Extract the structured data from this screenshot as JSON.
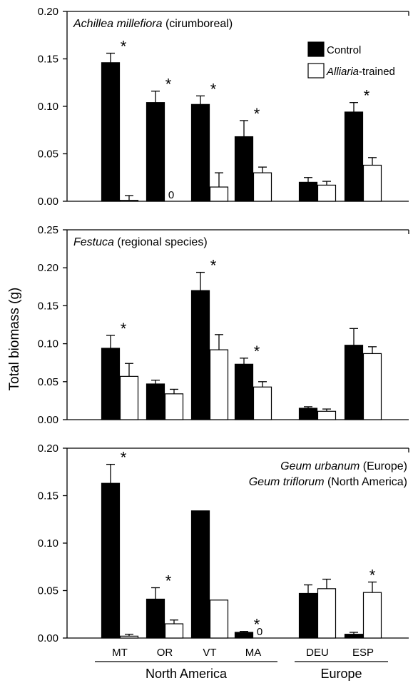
{
  "chart_data": {
    "type": "bar",
    "ylabel": "Total biomass (g)",
    "categories": [
      "MT",
      "OR",
      "VT",
      "MA",
      "DEU",
      "ESP"
    ],
    "groups": [
      {
        "name": "North America",
        "categories": [
          "MT",
          "OR",
          "VT",
          "MA"
        ]
      },
      {
        "name": "Europe",
        "categories": [
          "DEU",
          "ESP"
        ]
      }
    ],
    "legend": {
      "position": "top-right",
      "entries": [
        {
          "label": "Control",
          "fill": "#000000"
        },
        {
          "label_italic": "Alliaria",
          "label_rest": "-trained",
          "fill": "#ffffff"
        }
      ]
    },
    "panels": [
      {
        "title_italic": "Achillea millefiora",
        "title_rest": " (cirumboreal)",
        "ylim": [
          0,
          0.2
        ],
        "yticks": [
          "0.00",
          "0.05",
          "0.10",
          "0.15",
          "0.20"
        ],
        "series": [
          {
            "name": "Control",
            "values": [
              0.146,
              0.104,
              0.102,
              0.068,
              0.02,
              0.094
            ],
            "errors": [
              0.01,
              0.012,
              0.009,
              0.017,
              0.005,
              0.01
            ]
          },
          {
            "name": "Alliaria-trained",
            "values": [
              0.001,
              0.0,
              0.015,
              0.03,
              0.017,
              0.038
            ],
            "errors": [
              0.005,
              0.0,
              0.015,
              0.006,
              0.004,
              0.008
            ]
          }
        ],
        "significant": [
          "MT",
          "OR",
          "VT",
          "MA",
          "ESP"
        ],
        "zero_labels": [
          "OR"
        ]
      },
      {
        "title_italic": "Festuca",
        "title_rest": " (regional species)",
        "ylim": [
          0,
          0.25
        ],
        "yticks": [
          "0.00",
          "0.05",
          "0.10",
          "0.15",
          "0.20",
          "0.25"
        ],
        "series": [
          {
            "name": "Control",
            "values": [
              0.094,
              0.047,
              0.17,
              0.073,
              0.015,
              0.098
            ],
            "errors": [
              0.017,
              0.005,
              0.024,
              0.008,
              0.002,
              0.022
            ]
          },
          {
            "name": "Alliaria-trained",
            "values": [
              0.057,
              0.034,
              0.092,
              0.043,
              0.011,
              0.087
            ],
            "errors": [
              0.017,
              0.006,
              0.02,
              0.007,
              0.003,
              0.009
            ]
          }
        ],
        "significant": [
          "MT",
          "VT",
          "MA"
        ],
        "zero_labels": []
      },
      {
        "title_lines": [
          {
            "italic": "Geum urbanum",
            "rest": " (Europe)"
          },
          {
            "italic": "Geum triflorum",
            "rest": " (North America)"
          }
        ],
        "ylim": [
          0,
          0.2
        ],
        "yticks": [
          "0.00",
          "0.05",
          "0.10",
          "0.15",
          "0.20"
        ],
        "series": [
          {
            "name": "Control",
            "values": [
              0.163,
              0.041,
              0.134,
              0.006,
              0.047,
              0.004
            ],
            "errors": [
              0.02,
              0.012,
              0.0,
              0.001,
              0.009,
              0.002
            ]
          },
          {
            "name": "Alliaria-trained",
            "values": [
              0.002,
              0.015,
              0.04,
              0.0,
              0.052,
              0.048
            ],
            "errors": [
              0.002,
              0.004,
              0.0,
              0.0,
              0.01,
              0.011
            ]
          }
        ],
        "significant": [
          "MT",
          "OR",
          "MA",
          "ESP"
        ],
        "zero_labels": [
          "MA"
        ]
      }
    ]
  }
}
